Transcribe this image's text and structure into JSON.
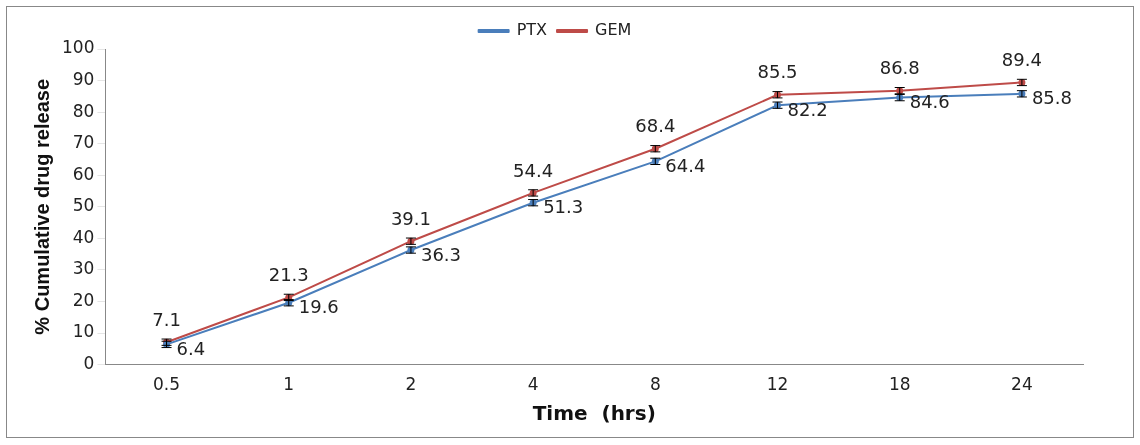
{
  "chart_data": {
    "type": "line",
    "xlabel": "Time  (hrs)",
    "ylabel": "% Cumulative drug release",
    "categories": [
      "0.5",
      "1",
      "2",
      "4",
      "8",
      "12",
      "18",
      "24"
    ],
    "series": [
      {
        "name": "PTX",
        "color": "#4a7ebb",
        "values": [
          6.4,
          19.6,
          36.3,
          51.3,
          64.4,
          82.2,
          84.6,
          85.8
        ],
        "errors": [
          1,
          1,
          1,
          1,
          1,
          1,
          1,
          1
        ]
      },
      {
        "name": "GEM",
        "color": "#be4b48",
        "values": [
          7.1,
          21.3,
          39.1,
          54.4,
          68.4,
          85.5,
          86.8,
          89.4
        ],
        "errors": [
          1,
          1,
          1,
          1,
          1,
          1,
          1,
          1
        ]
      }
    ],
    "ylim": [
      0,
      100
    ],
    "yticks": [
      0,
      10,
      20,
      30,
      40,
      50,
      60,
      70,
      80,
      90,
      100
    ],
    "grid": false,
    "legend": "top",
    "marker": "circle",
    "line_style": "solid",
    "data_labels": true
  }
}
